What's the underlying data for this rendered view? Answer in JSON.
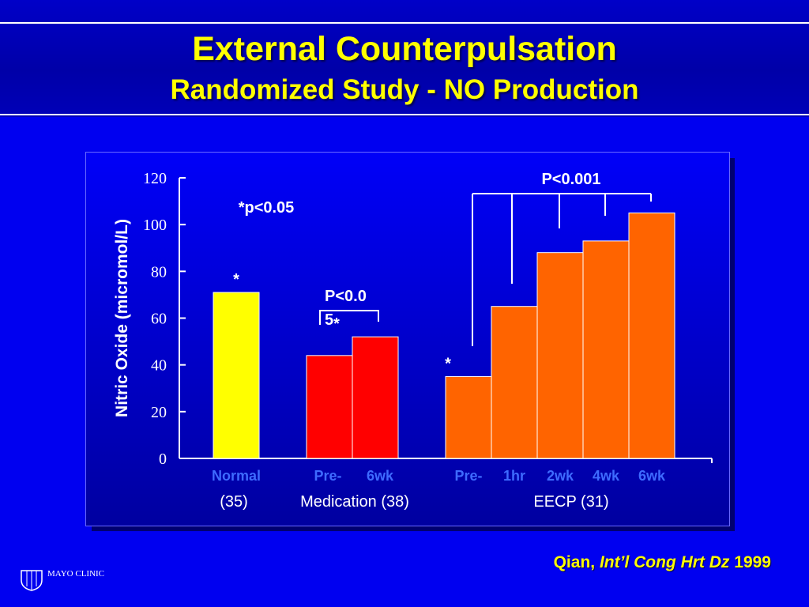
{
  "slide": {
    "title": "External Counterpulsation",
    "subtitle": "Randomized Study - NO Production",
    "citation_author": "Qian, ",
    "citation_journal": "Int’l Cong Hrt Dz",
    "citation_year": " 1999",
    "logo_text": "MAYO CLINIC"
  },
  "colors": {
    "background": "#0000f0",
    "title": "#ffff00",
    "normal_bar": "#ffff00",
    "medication_bar": "#ff0000",
    "eecp_bar": "#ff6400",
    "bar_label_blue": "#3e6bff"
  },
  "chart_data": {
    "type": "bar",
    "ylabel": "Nitric Oxide (micromol/L)",
    "ylim": [
      0,
      120
    ],
    "yticks": [
      0,
      20,
      40,
      60,
      80,
      100,
      120
    ],
    "groups": [
      {
        "label": "(35)",
        "bars": [
          {
            "category": "Normal",
            "value": 71,
            "marker": "*"
          }
        ]
      },
      {
        "label": "Medication (38)",
        "bars": [
          {
            "category": "Pre-",
            "value": 44
          },
          {
            "category": "6wk",
            "value": 52,
            "marker": "*"
          }
        ]
      },
      {
        "label": "EECP (31)",
        "bars": [
          {
            "category": "Pre-",
            "value": 35,
            "marker": "*"
          },
          {
            "category": "1hr",
            "value": 65
          },
          {
            "category": "2wk",
            "value": 88
          },
          {
            "category": "4wk",
            "value": 93
          },
          {
            "category": "6wk",
            "value": 105
          }
        ]
      }
    ],
    "annotations": [
      "*p<0.05",
      "P<0.0",
      "5",
      "P<0.001"
    ]
  }
}
